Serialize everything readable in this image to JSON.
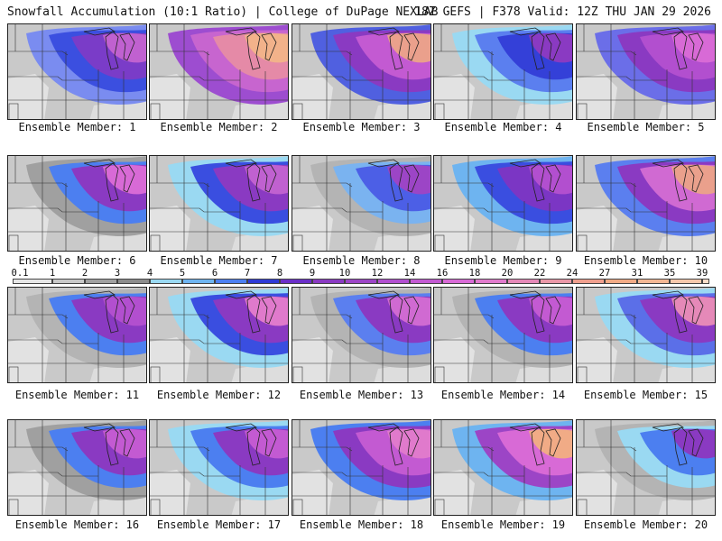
{
  "header": {
    "left_title": "Snowfall Accumulation (10:1 Ratio) | College of DuPage NEXLAB",
    "right_title": "18Z GEFS | F378 Valid: 12Z THU JAN 29 2026"
  },
  "colorbar": {
    "levels": [
      "0.1",
      "1",
      "2",
      "3",
      "4",
      "5",
      "6",
      "7",
      "8",
      "9",
      "10",
      "12",
      "14",
      "16",
      "18",
      "20",
      "22",
      "24",
      "27",
      "31",
      "35",
      "39"
    ],
    "colors": [
      "#e6e6e6",
      "#c8c8c8",
      "#a0a0a0",
      "#8c8c8c",
      "#9ad9f2",
      "#6eb4f0",
      "#4c7ff0",
      "#2f3bd6",
      "#6b2fc8",
      "#8a3ac2",
      "#9c45c6",
      "#b24fcf",
      "#c35ad2",
      "#d86ad6",
      "#e07acc",
      "#e589b8",
      "#ea98a8",
      "#ef9f8e",
      "#f1ab86",
      "#f3b794",
      "#f6c8ac",
      "#f9dcc8"
    ]
  },
  "members": [
    {
      "label": "Ensemble Member: 1",
      "palette": [
        "#7a8cf0",
        "#3b4fe0",
        "#7a3cc8",
        "#c061d0"
      ]
    },
    {
      "label": "Ensemble Member: 2",
      "palette": [
        "#9d4dd0",
        "#c765cf",
        "#e58aa7",
        "#f2b28a"
      ]
    },
    {
      "label": "Ensemble Member: 3",
      "palette": [
        "#5060e0",
        "#8a3ac2",
        "#c35ad2",
        "#eaa08c"
      ]
    },
    {
      "label": "Ensemble Member: 4",
      "palette": [
        "#9ad9f2",
        "#5b7fef",
        "#3440d8",
        "#8a3ac2"
      ]
    },
    {
      "label": "Ensemble Member: 5",
      "palette": [
        "#6b6ee8",
        "#8a3ac2",
        "#b24fcf",
        "#d86ad6"
      ]
    },
    {
      "label": "Ensemble Member: 6",
      "palette": [
        "#a0a0a0",
        "#4c7ff0",
        "#8a3ac2",
        "#d86ad6"
      ]
    },
    {
      "label": "Ensemble Member: 7",
      "palette": [
        "#9ad9f2",
        "#3a4ee0",
        "#8a3ac2",
        "#c061d0"
      ]
    },
    {
      "label": "Ensemble Member: 8",
      "palette": [
        "#b4b4b4",
        "#7ab3f0",
        "#4c5fe6",
        "#9c45c6"
      ]
    },
    {
      "label": "Ensemble Member: 9",
      "palette": [
        "#6eb4f0",
        "#3a4ee0",
        "#7b36c4",
        "#b24fcf"
      ]
    },
    {
      "label": "Ensemble Member: 10",
      "palette": [
        "#5b7fef",
        "#8a3ac2",
        "#d06ad2",
        "#eaa08c"
      ]
    },
    {
      "label": "Ensemble Member: 11",
      "palette": [
        "#b4b4b4",
        "#4c7ff0",
        "#8a3ac2",
        "#b24fcf"
      ]
    },
    {
      "label": "Ensemble Member: 12",
      "palette": [
        "#9ad9f2",
        "#3a4ee0",
        "#8a3ac2",
        "#e07acc"
      ]
    },
    {
      "label": "Ensemble Member: 13",
      "palette": [
        "#b4b4b4",
        "#5b7fef",
        "#8a3ac2",
        "#d06ad2"
      ]
    },
    {
      "label": "Ensemble Member: 14",
      "palette": [
        "#b4b4b4",
        "#4c7ff0",
        "#8a3ac2",
        "#c35ad2"
      ]
    },
    {
      "label": "Ensemble Member: 15",
      "palette": [
        "#9ad9f2",
        "#5b6fe8",
        "#8a3ac2",
        "#e589b8"
      ]
    },
    {
      "label": "Ensemble Member: 16",
      "palette": [
        "#a0a0a0",
        "#4c7ff0",
        "#8a3ac2",
        "#c35ad2"
      ]
    },
    {
      "label": "Ensemble Member: 17",
      "palette": [
        "#9ad9f2",
        "#4c7ff0",
        "#8a3ac2",
        "#c35ad2"
      ]
    },
    {
      "label": "Ensemble Member: 18",
      "palette": [
        "#4c7ff0",
        "#8a3ac2",
        "#c35ad2",
        "#e07acc"
      ]
    },
    {
      "label": "Ensemble Member: 19",
      "palette": [
        "#6eb4f0",
        "#9c45c6",
        "#d86ad6",
        "#f1ab86"
      ]
    },
    {
      "label": "Ensemble Member: 20",
      "palette": [
        "#b4b4b4",
        "#9ad9f2",
        "#4c7ff0",
        "#8a3ac2"
      ]
    }
  ]
}
